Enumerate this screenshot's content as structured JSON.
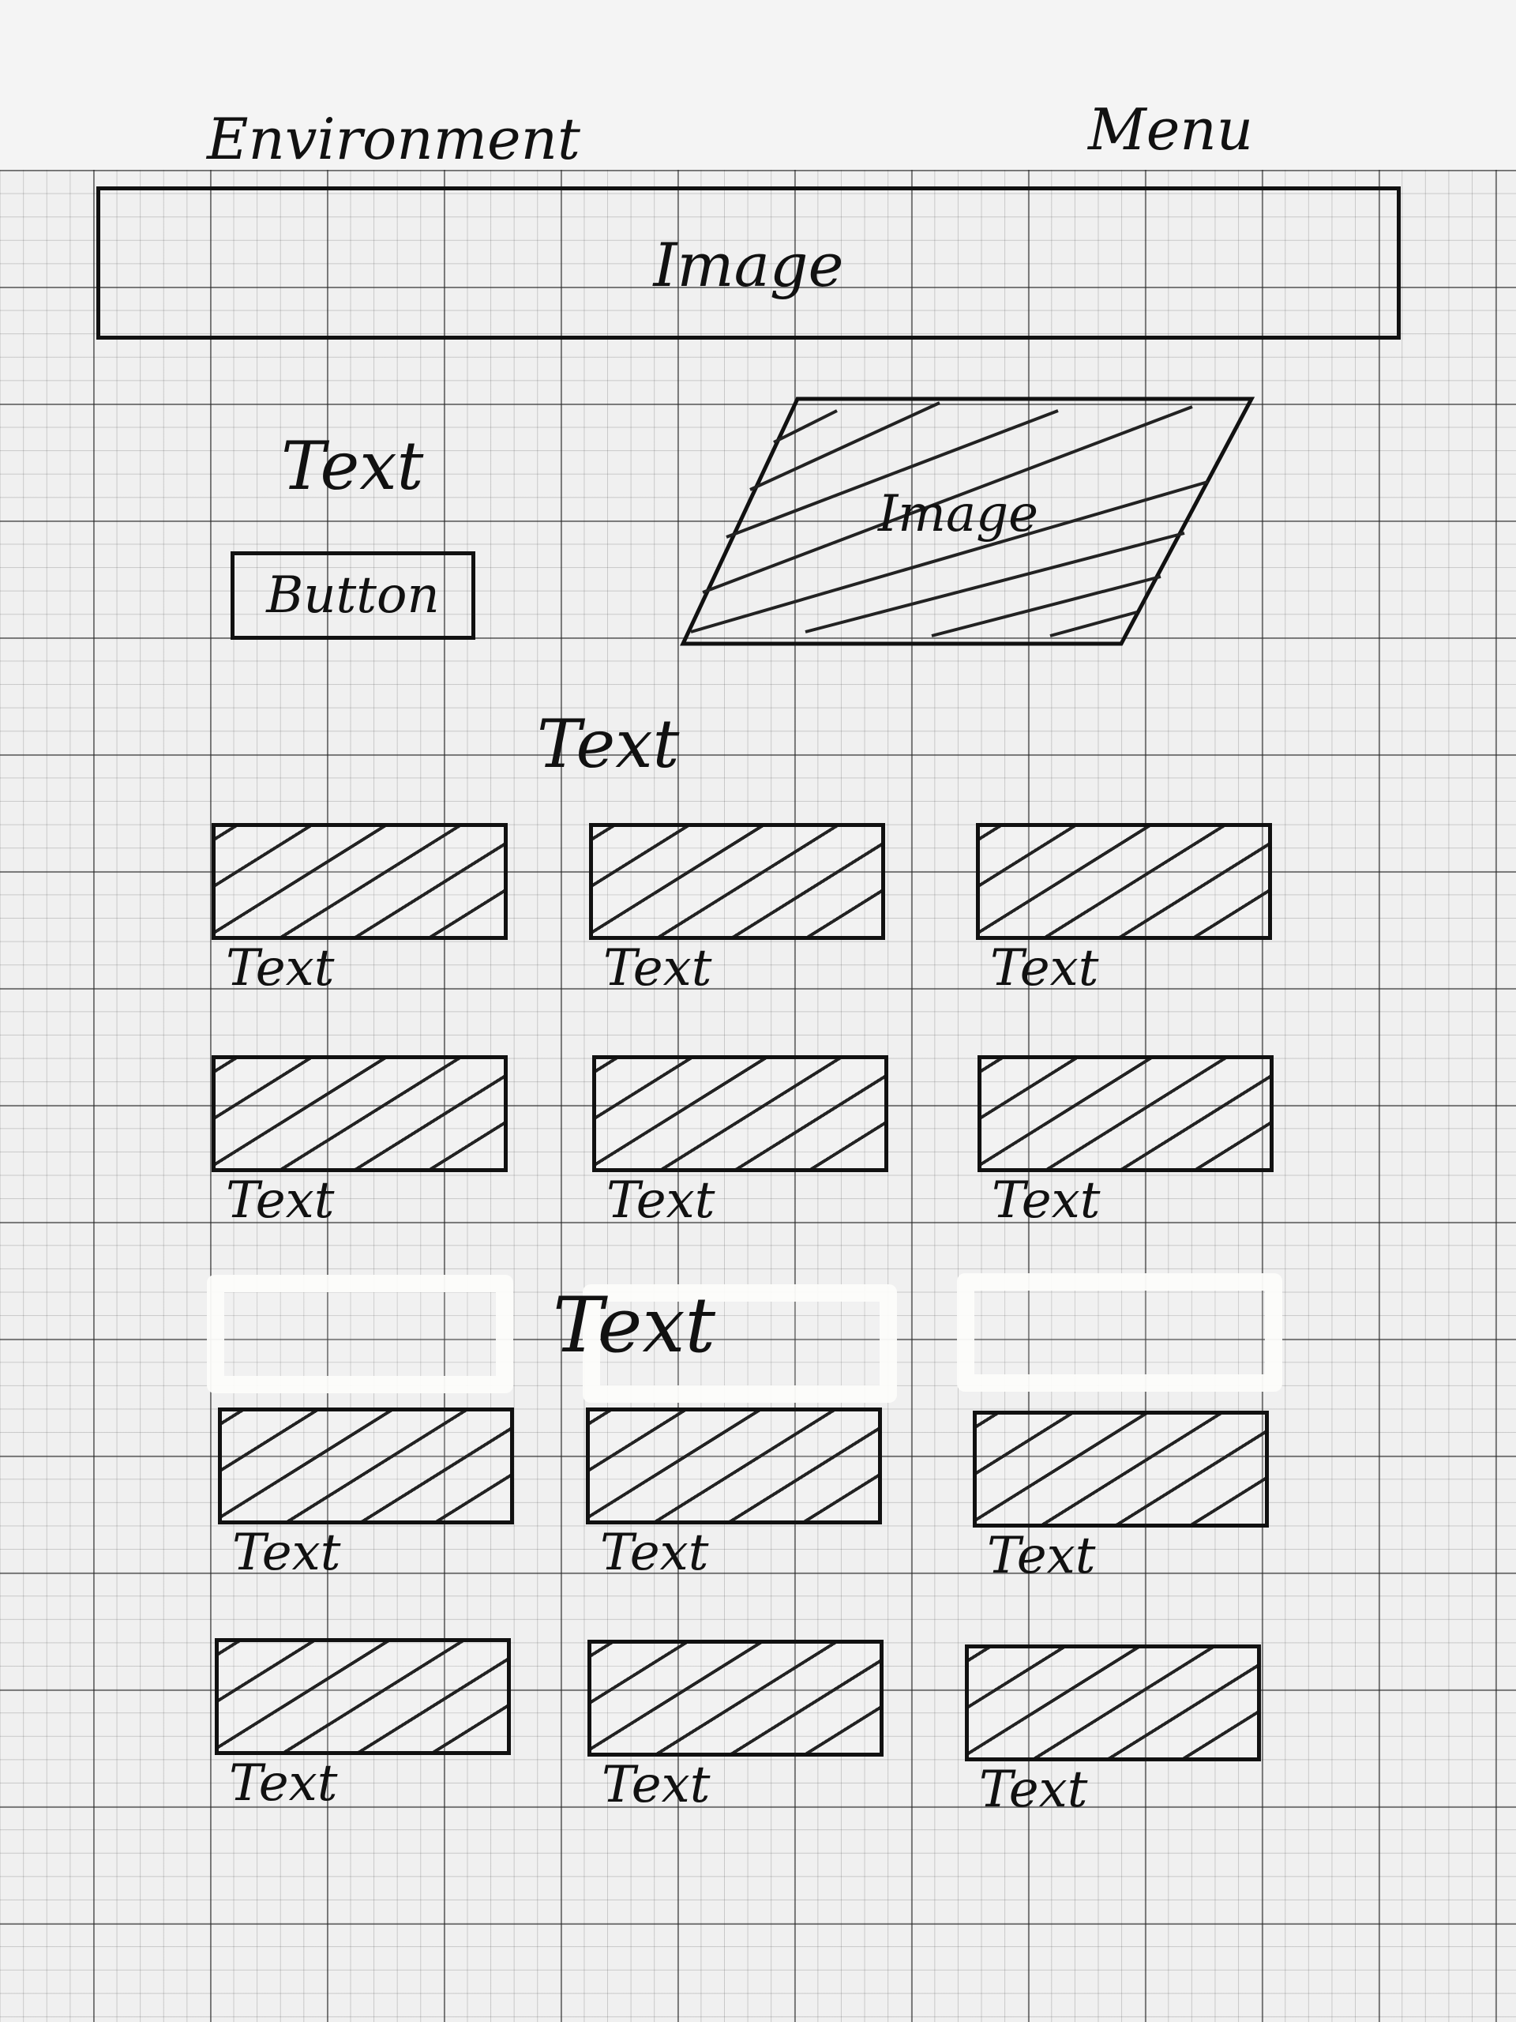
{
  "nav": {
    "title": "Environment",
    "menu": "Menu"
  },
  "hero": {
    "label": "Image"
  },
  "intro": {
    "text": "Text",
    "button": "Button",
    "image_label": "Image"
  },
  "section1": {
    "title": "Text",
    "cards": [
      {
        "caption": "Text"
      },
      {
        "caption": "Text"
      },
      {
        "caption": "Text"
      },
      {
        "caption": "Text"
      },
      {
        "caption": "Text"
      },
      {
        "caption": "Text"
      }
    ]
  },
  "section2": {
    "title": "Text",
    "cards": [
      {
        "caption": "Text"
      },
      {
        "caption": "Text"
      },
      {
        "caption": "Text"
      },
      {
        "caption": "Text"
      },
      {
        "caption": "Text"
      },
      {
        "caption": "Text"
      }
    ]
  }
}
